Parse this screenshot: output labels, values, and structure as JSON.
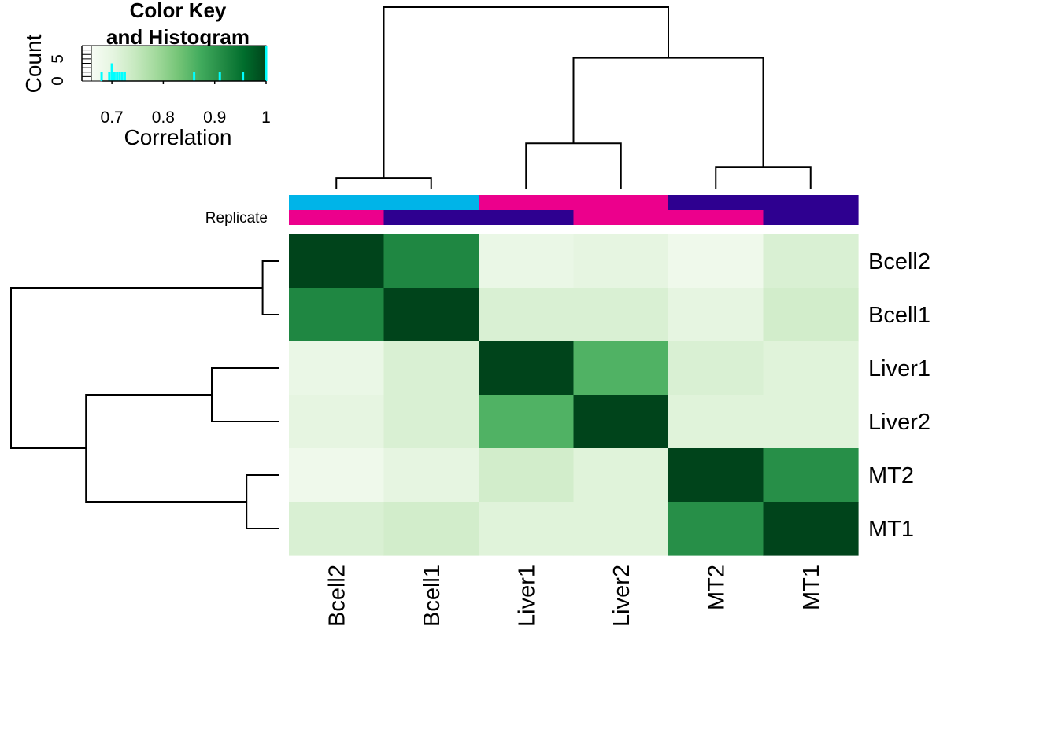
{
  "chart_data": {
    "type": "heatmap",
    "title": "",
    "row_labels": [
      "Bcell2",
      "Bcell1",
      "Liver1",
      "Liver2",
      "MT2",
      "MT1"
    ],
    "col_labels": [
      "Bcell2",
      "Bcell1",
      "Liver1",
      "Liver2",
      "MT2",
      "MT1"
    ],
    "values": [
      [
        1.0,
        0.92,
        0.69,
        0.7,
        0.68,
        0.72
      ],
      [
        0.92,
        1.0,
        0.72,
        0.72,
        0.7,
        0.73
      ],
      [
        0.69,
        0.72,
        1.0,
        0.86,
        0.72,
        0.71
      ],
      [
        0.7,
        0.72,
        0.86,
        1.0,
        0.71,
        0.71
      ],
      [
        0.68,
        0.7,
        0.73,
        0.71,
        1.0,
        0.91
      ],
      [
        0.72,
        0.73,
        0.71,
        0.71,
        0.91,
        1.0
      ]
    ],
    "color_range": [
      0.66,
      1.0
    ],
    "color_scale": [
      "#f7fcf5",
      "#e5f5e0",
      "#c7e9c0",
      "#a1d99b",
      "#74c476",
      "#41ab5d",
      "#238b45",
      "#006d2c",
      "#00441b"
    ],
    "annotation_rows": [
      {
        "name": "",
        "colors": [
          "#00b4e8",
          "#00b4e8",
          "#ec008c",
          "#ec008c",
          "#2e0090",
          "#2e0090"
        ]
      },
      {
        "name": "Replicate",
        "colors": [
          "#ec008c",
          "#2e0090",
          "#2e0090",
          "#ec008c",
          "#ec008c",
          "#2e0090"
        ]
      }
    ],
    "dendrogram": {
      "order": [
        "Bcell2",
        "Bcell1",
        "Liver1",
        "Liver2",
        "MT2",
        "MT1"
      ],
      "merges": [
        [
          0,
          1,
          0.06
        ],
        [
          2,
          3,
          0.25
        ],
        [
          4,
          5,
          0.12
        ],
        [
          7,
          8,
          0.72
        ],
        [
          6,
          9,
          1.0
        ]
      ]
    },
    "key": {
      "title_line1": "Color Key",
      "title_line2": "and Histogram",
      "xlabel": "Correlation",
      "ylabel": "Count",
      "x_ticks": [
        "0.7",
        "0.8",
        "0.9",
        "1"
      ],
      "x_tick_values": [
        0.7,
        0.8,
        0.9,
        1.0
      ],
      "y_ticks": [
        "0",
        "5"
      ],
      "y_tick_values": [
        0,
        5
      ],
      "y_max": 8,
      "hist_color": "#00ffff",
      "histogram": [
        {
          "x": 0.68,
          "count": 2
        },
        {
          "x": 0.695,
          "count": 2
        },
        {
          "x": 0.7,
          "count": 4
        },
        {
          "x": 0.705,
          "count": 2
        },
        {
          "x": 0.71,
          "count": 2
        },
        {
          "x": 0.715,
          "count": 2
        },
        {
          "x": 0.72,
          "count": 2
        },
        {
          "x": 0.725,
          "count": 2
        },
        {
          "x": 0.86,
          "count": 2
        },
        {
          "x": 0.91,
          "count": 2
        },
        {
          "x": 0.955,
          "count": 2
        },
        {
          "x": 1.0,
          "count": 8
        }
      ]
    }
  }
}
